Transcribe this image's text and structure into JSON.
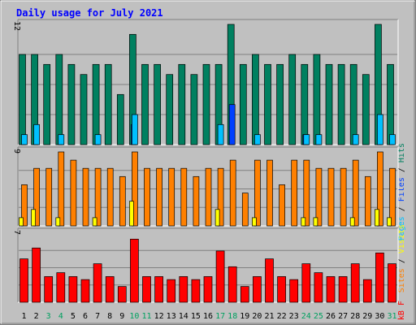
{
  "chart_data": {
    "type": "bar",
    "title": "Daily usage for July 2021",
    "categories": [
      "1",
      "2",
      "3",
      "4",
      "5",
      "6",
      "7",
      "8",
      "9",
      "10",
      "11",
      "12",
      "13",
      "14",
      "15",
      "16",
      "17",
      "18",
      "19",
      "20",
      "21",
      "22",
      "23",
      "24",
      "25",
      "26",
      "27",
      "28",
      "29",
      "30",
      "31"
    ],
    "weekend_days": [
      "3",
      "4",
      "10",
      "11",
      "17",
      "18",
      "24",
      "25",
      "31"
    ],
    "panels": [
      {
        "id": "hits-files-pages",
        "ymax_label": "12",
        "ymax": 12,
        "legend": [
          "Pages",
          "/",
          "Files",
          "/",
          "Hits"
        ],
        "series": [
          {
            "name": "Hits",
            "color": "#008060",
            "values": [
              9,
              9,
              8,
              9,
              8,
              7,
              8,
              8,
              5,
              11,
              8,
              8,
              7,
              8,
              7,
              8,
              8,
              12,
              8,
              9,
              8,
              8,
              9,
              8,
              9,
              8,
              8,
              8,
              7,
              12,
              8
            ]
          },
          {
            "name": "Files",
            "color": "#0040ff",
            "values": [
              0,
              0,
              0,
              0,
              0,
              0,
              0,
              0,
              0,
              2,
              0,
              0,
              0,
              0,
              0,
              0,
              0,
              4,
              0,
              0,
              0,
              0,
              0,
              1,
              0,
              0,
              0,
              0,
              0,
              0,
              0
            ]
          },
          {
            "name": "Pages",
            "color": "#00c0ff",
            "values": [
              1,
              2,
              0,
              1,
              0,
              0,
              1,
              0,
              0,
              3,
              0,
              0,
              0,
              0,
              0,
              0,
              2,
              0,
              0,
              1,
              0,
              0,
              0,
              1,
              1,
              0,
              0,
              1,
              0,
              3,
              1
            ]
          }
        ]
      },
      {
        "id": "visits-sites",
        "ymax_label": "9",
        "ymax": 9,
        "legend": [
          "Sites",
          "/",
          "Visits"
        ],
        "series": [
          {
            "name": "Sites",
            "color": "#ff8000",
            "values": [
              5,
              7,
              7,
              9,
              8,
              7,
              7,
              7,
              6,
              9,
              7,
              7,
              7,
              7,
              6,
              7,
              7,
              8,
              4,
              8,
              8,
              5,
              8,
              8,
              7,
              7,
              7,
              8,
              6,
              9,
              7
            ]
          },
          {
            "name": "Visits",
            "color": "#ffff00",
            "values": [
              1,
              2,
              0,
              1,
              0,
              0,
              1,
              0,
              0,
              3,
              0,
              0,
              0,
              0,
              0,
              0,
              2,
              0,
              0,
              1,
              0,
              0,
              0,
              1,
              1,
              0,
              0,
              1,
              0,
              2,
              1
            ]
          }
        ]
      },
      {
        "id": "kbytes",
        "ymax_label": "7",
        "ymax": 7,
        "legend": [
          "kB",
          "F"
        ],
        "series": [
          {
            "name": "kB F",
            "color": "#ff0000",
            "values": [
              4.4,
              5.5,
              2.6,
              3,
              2.6,
              2.3,
              3.9,
              2.6,
              1.6,
              6.4,
              2.6,
              2.6,
              2.3,
              2.6,
              2.3,
              2.6,
              5.2,
              3.6,
              1.6,
              2.6,
              4.4,
              2.6,
              2.3,
              3.9,
              3,
              2.6,
              2.6,
              3.9,
              2.3,
              5,
              3.9
            ]
          }
        ]
      }
    ]
  },
  "colors": {
    "background": "#c0c0c0",
    "panel": "#c0c0c0",
    "grid": "#808080",
    "title": "#0000ff",
    "axis_label": "#000000",
    "weekend_label": "#00a060"
  }
}
